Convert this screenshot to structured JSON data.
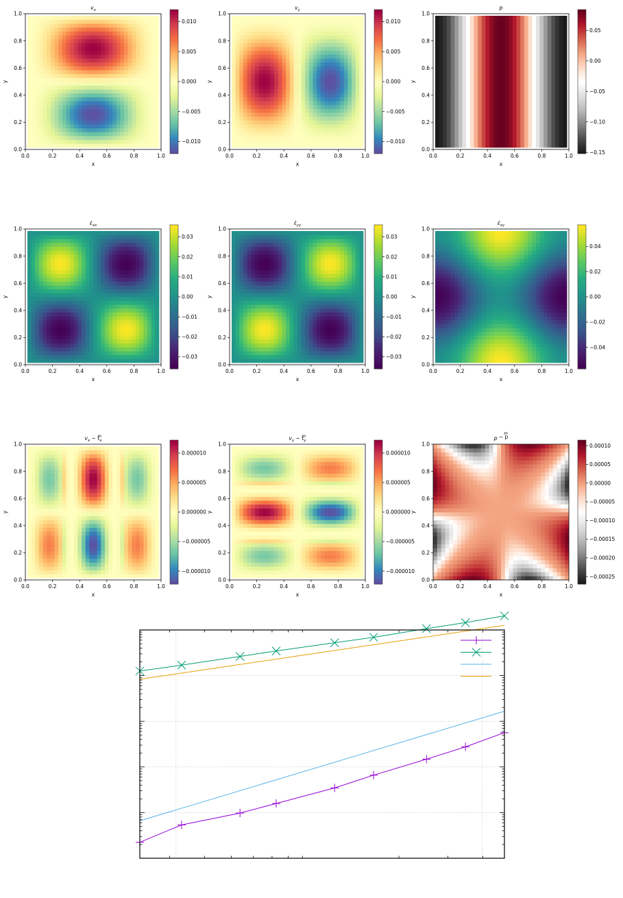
{
  "chart_data": [
    {
      "type": "heatmap",
      "title": "v_x",
      "title_main": "v",
      "title_sub": "x",
      "title_sup": "",
      "xlabel": "x",
      "ylabel": "y",
      "xlim": [
        0,
        1
      ],
      "ylim": [
        0,
        1
      ],
      "xticks": [
        "0.0",
        "0.2",
        "0.4",
        "0.6",
        "0.8",
        "1.0"
      ],
      "yticks": [
        "0.0",
        "0.2",
        "0.4",
        "0.6",
        "0.8",
        "1.0"
      ],
      "colormap": "Spectral_r",
      "field": "vx",
      "clim": [
        -0.012,
        0.012
      ],
      "colorbar_ticks": [
        0.01,
        0.005,
        0.0,
        -0.005,
        -0.01
      ],
      "colorbar_labels": [
        "0.010",
        "0.005",
        "0.000",
        "−0.005",
        "−0.010"
      ]
    },
    {
      "type": "heatmap",
      "title": "v_y",
      "title_main": "v",
      "title_sub": "y",
      "title_sup": "",
      "xlabel": "x",
      "ylabel": "y",
      "xlim": [
        0,
        1
      ],
      "ylim": [
        0,
        1
      ],
      "xticks": [
        "0.0",
        "0.2",
        "0.4",
        "0.6",
        "0.8",
        "1.0"
      ],
      "yticks": [
        "0.0",
        "0.2",
        "0.4",
        "0.6",
        "0.8",
        "1.0"
      ],
      "colormap": "Spectral_r",
      "field": "vy",
      "clim": [
        -0.012,
        0.012
      ],
      "colorbar_ticks": [
        0.01,
        0.005,
        0.0,
        -0.005,
        -0.01
      ],
      "colorbar_labels": [
        "0.010",
        "0.005",
        "0.000",
        "−0.005",
        "−0.010"
      ]
    },
    {
      "type": "heatmap",
      "title": "p",
      "title_main": "p",
      "title_sub": "",
      "title_sup": "",
      "xlabel": "x",
      "ylabel": "y",
      "xlim": [
        0,
        1
      ],
      "ylim": [
        0,
        1
      ],
      "xticks": [
        "0.0",
        "0.2",
        "0.4",
        "0.6",
        "0.8",
        "1.0"
      ],
      "yticks": [
        "0.0",
        "0.2",
        "0.4",
        "0.6",
        "0.8",
        "1.0"
      ],
      "colormap": "RdGy_r",
      "field": "p",
      "clim": [
        -0.152,
        0.084
      ],
      "colorbar_ticks": [
        0.05,
        0.0,
        -0.05,
        -0.1,
        -0.15
      ],
      "colorbar_labels": [
        "0.05",
        "0.00",
        "−0.05",
        "−0.10",
        "−0.15"
      ]
    },
    {
      "type": "heatmap",
      "title": "ε̇_xx",
      "title_main": "ε̇",
      "title_sub": "xx",
      "title_sup": "",
      "xlabel": "x",
      "ylabel": "y",
      "xlim": [
        0,
        1
      ],
      "ylim": [
        0,
        1
      ],
      "xticks": [
        "0.0",
        "0.2",
        "0.4",
        "0.6",
        "0.8",
        "1.0"
      ],
      "yticks": [
        "0.0",
        "0.2",
        "0.4",
        "0.6",
        "0.8",
        "1.0"
      ],
      "colormap": "viridis",
      "field": "exx",
      "clim": [
        -0.036,
        0.036
      ],
      "colorbar_ticks": [
        0.03,
        0.02,
        0.01,
        0.0,
        -0.01,
        -0.02,
        -0.03
      ],
      "colorbar_labels": [
        "0.03",
        "0.02",
        "0.01",
        "0.00",
        "−0.01",
        "−0.02",
        "−0.03"
      ]
    },
    {
      "type": "heatmap",
      "title": "ε̇_yy",
      "title_main": "ε̇",
      "title_sub": "yy",
      "title_sup": "",
      "xlabel": "x",
      "ylabel": "y",
      "xlim": [
        0,
        1
      ],
      "ylim": [
        0,
        1
      ],
      "xticks": [
        "0.0",
        "0.2",
        "0.4",
        "0.6",
        "0.8",
        "1.0"
      ],
      "yticks": [
        "0.0",
        "0.2",
        "0.4",
        "0.6",
        "0.8",
        "1.0"
      ],
      "colormap": "viridis",
      "field": "eyy",
      "clim": [
        -0.036,
        0.036
      ],
      "colorbar_ticks": [
        0.03,
        0.02,
        0.01,
        0.0,
        -0.01,
        -0.02,
        -0.03
      ],
      "colorbar_labels": [
        "0.03",
        "0.02",
        "0.01",
        "0.00",
        "−0.01",
        "−0.02",
        "−0.03"
      ]
    },
    {
      "type": "heatmap",
      "title": "ε̇_xy",
      "title_main": "ε̇",
      "title_sub": "xy",
      "title_sup": "",
      "xlabel": "x",
      "ylabel": "y",
      "xlim": [
        0,
        1
      ],
      "ylim": [
        0,
        1
      ],
      "xticks": [
        "0.0",
        "0.2",
        "0.4",
        "0.6",
        "0.8",
        "1.0"
      ],
      "yticks": [
        "0.0",
        "0.2",
        "0.4",
        "0.6",
        "0.8",
        "1.0"
      ],
      "colormap": "viridis",
      "field": "exy",
      "clim": [
        -0.057,
        0.057
      ],
      "colorbar_ticks": [
        0.04,
        0.02,
        0.0,
        -0.02,
        -0.04
      ],
      "colorbar_labels": [
        "0.04",
        "0.02",
        "0.00",
        "−0.02",
        "−0.04"
      ]
    },
    {
      "type": "heatmap",
      "title": "v_x − t_x^th",
      "title_main": "v",
      "title_sub": "x",
      "title_mid": " − t",
      "title_sub2": "x",
      "title_sup": "th",
      "xlabel": "x",
      "ylabel": "y",
      "xlim": [
        0,
        1
      ],
      "ylim": [
        0,
        1
      ],
      "xticks": [
        "0.0",
        "0.2",
        "0.4",
        "0.6",
        "0.8",
        "1.0"
      ],
      "yticks": [
        "0.0",
        "0.2",
        "0.4",
        "0.6",
        "0.8",
        "1.0"
      ],
      "colormap": "Spectral_r",
      "field": "dvx",
      "clim": [
        -1.22e-05,
        1.22e-05
      ],
      "colorbar_ticks": [
        1e-05,
        5e-06,
        0.0,
        -5e-06,
        -1e-05
      ],
      "colorbar_labels": [
        "0.000010",
        "0.000005",
        "0.000000",
        "−0.000005",
        "−0.000010"
      ]
    },
    {
      "type": "heatmap",
      "title": "v_y − t_y^th",
      "title_main": "v",
      "title_sub": "y",
      "title_mid": " − t",
      "title_sub2": "y",
      "title_sup": "th",
      "xlabel": "x",
      "ylabel": "y",
      "xlim": [
        0,
        1
      ],
      "ylim": [
        0,
        1
      ],
      "xticks": [
        "0.0",
        "0.2",
        "0.4",
        "0.6",
        "0.8",
        "1.0"
      ],
      "yticks": [
        "0.0",
        "0.2",
        "0.4",
        "0.6",
        "0.8",
        "1.0"
      ],
      "colormap": "Spectral_r",
      "field": "dvy",
      "clim": [
        -1.22e-05,
        1.22e-05
      ],
      "colorbar_ticks": [
        1e-05,
        5e-06,
        0.0,
        -5e-06,
        -1e-05
      ],
      "colorbar_labels": [
        "0.000010",
        "0.000005",
        "0.000000",
        "−0.000005",
        "−0.000010"
      ]
    },
    {
      "type": "heatmap",
      "title": "p − p^th",
      "title_main": "p",
      "title_sub": "",
      "title_mid": " − p",
      "title_sub2": "",
      "title_sup": "th",
      "xlabel": "x",
      "ylabel": "y",
      "xlim": [
        0,
        1
      ],
      "ylim": [
        0,
        1
      ],
      "xticks": [
        "0.0",
        "0.2",
        "0.4",
        "0.6",
        "0.8",
        "1.0"
      ],
      "yticks": [
        "0.0",
        "0.2",
        "0.4",
        "0.6",
        "0.8",
        "1.0"
      ],
      "colormap": "RdGy_r",
      "field": "dp",
      "clim": [
        -0.00027,
        0.000115
      ],
      "colorbar_ticks": [
        0.0001,
        5e-05,
        0.0,
        -5e-05,
        -0.0001,
        -0.00015,
        -0.0002,
        -0.00025
      ],
      "colorbar_labels": [
        "0.00010",
        "0.00005",
        "0.00000",
        "−0.00005",
        "−0.00010",
        "−0.00015",
        "−0.00020",
        "−0.00025"
      ]
    },
    {
      "type": "line",
      "title": "",
      "xlabel": "",
      "ylabel": "",
      "xscale": "log",
      "yscale": "log",
      "grid": true,
      "legend": "top-right",
      "legend_entries": [
        "",
        "",
        "",
        ""
      ],
      "xlim_log10": [
        -1.63,
        -0.32
      ],
      "ylim_log10": [
        -5,
        0
      ],
      "series": [
        {
          "name": "",
          "color": "#9400d3",
          "marker": "plus",
          "log10x": [
            -1.63,
            -1.48,
            -1.27,
            -1.14,
            -0.93,
            -0.79,
            -0.6,
            -0.46,
            -0.32
          ],
          "log10y": [
            -4.65,
            -4.27,
            -4.01,
            -3.8,
            -3.46,
            -3.18,
            -2.83,
            -2.56,
            -2.25
          ]
        },
        {
          "name": "",
          "color": "#009e73",
          "marker": "x",
          "log10x": [
            -1.63,
            -1.48,
            -1.27,
            -1.14,
            -0.93,
            -0.79,
            -0.6,
            -0.46,
            -0.32
          ],
          "log10y": [
            -0.9,
            -0.77,
            -0.58,
            -0.46,
            -0.28,
            -0.16,
            0.03,
            0.16,
            0.31
          ]
        },
        {
          "name": "",
          "color": "#56b4e9",
          "marker": "none",
          "log10x": [
            -1.63,
            -0.32
          ],
          "log10y": [
            -4.18,
            -1.78
          ]
        },
        {
          "name": "",
          "color": "#e69f00",
          "marker": "none",
          "log10x": [
            -1.63,
            -0.32
          ],
          "log10y": [
            -1.08,
            0.1
          ]
        }
      ]
    }
  ]
}
